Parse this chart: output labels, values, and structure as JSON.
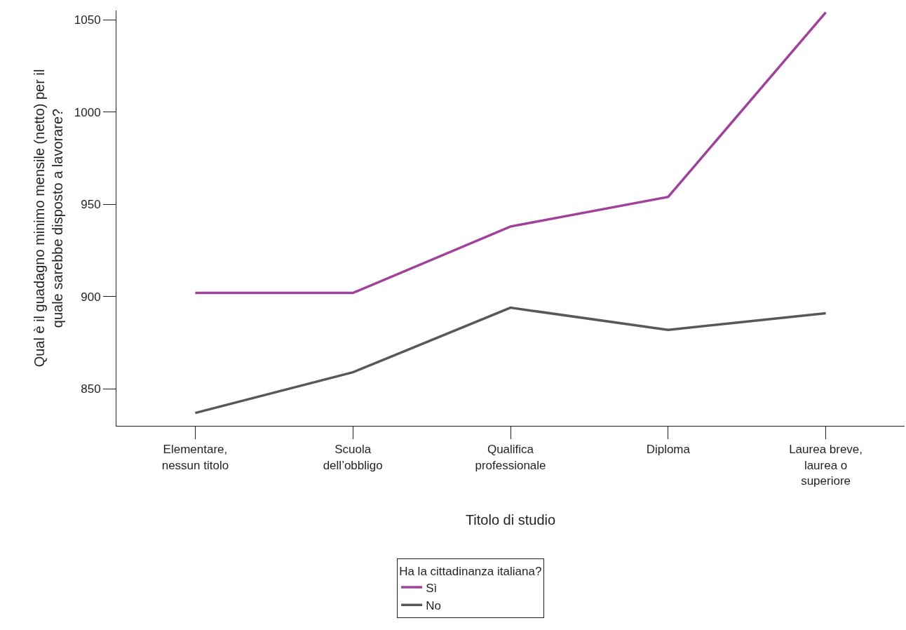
{
  "chart_data": {
    "type": "line",
    "xlabel": "Titolo di studio",
    "ylabel": "Qual è il guadagno minimo mensile (netto) per il quale sarebbe disposto a lavorare?",
    "legend_title": "Ha la cittadinanza italiana?",
    "categories": [
      "Elementare, nessun titolo",
      "Scuola dell’obbligo",
      "Qualifica professionale",
      "Diploma",
      "Laurea breve, laurea o superiore"
    ],
    "series": [
      {
        "name": "Sì",
        "color": "#a0429a",
        "values": [
          902,
          902,
          938,
          954,
          1054
        ]
      },
      {
        "name": "No",
        "color": "#58585a",
        "values": [
          837,
          859,
          894,
          882,
          891
        ]
      }
    ],
    "ylim": [
      830,
      1055
    ],
    "yticks": [
      850,
      900,
      950,
      1000,
      1050
    ],
    "grid": false,
    "legend": "bottom",
    "marker": "none",
    "line_style": "solid"
  }
}
